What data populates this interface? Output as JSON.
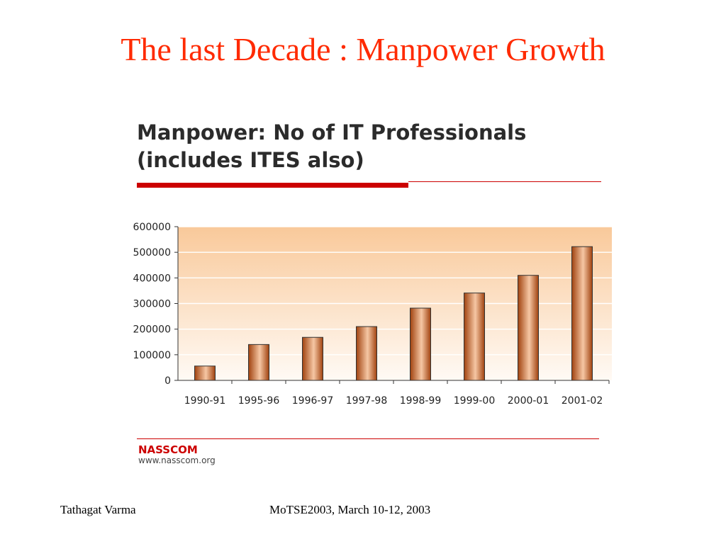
{
  "slide": {
    "title": "The last Decade : Manpower Growth"
  },
  "figure": {
    "heading_line1": "Manpower: No of IT Professionals",
    "heading_line2": "(includes ITES also)",
    "source_name": "NASSCOM",
    "source_url": "www.nasscom.org"
  },
  "footer": {
    "author": "Tathagat Varma",
    "event": "MoTSE2003, March 10-12, 2003"
  },
  "colors": {
    "title": "#ff2a00",
    "rule": "#cc0000",
    "bar_dark": "#a0420f",
    "bar_light": "#f6c7a4",
    "bg_top": "#f9c99a",
    "bg_bottom": "#fffaf5"
  },
  "chart_data": {
    "type": "bar",
    "categories": [
      "1990-91",
      "1995-96",
      "1996-97",
      "1997-98",
      "1998-99",
      "1999-00",
      "2000-01",
      "2001-02"
    ],
    "values": [
      56000,
      140000,
      168000,
      210000,
      282000,
      341000,
      410000,
      522000
    ],
    "yticks": [
      "0",
      "100000",
      "200000",
      "300000",
      "400000",
      "500000",
      "600000"
    ],
    "ylim": [
      0,
      600000
    ],
    "grid": true,
    "legend": "none"
  }
}
